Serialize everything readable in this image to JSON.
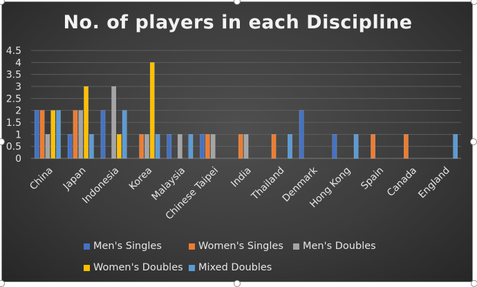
{
  "chart_data": {
    "type": "bar",
    "title": "No. of players in each Discipline",
    "categories": [
      "China",
      "Japan",
      "Indonesia",
      "Korea",
      "Malaysia",
      "Chinese Taipei",
      "India",
      "Thailand",
      "Denmark",
      "Hong Kong",
      "Spain",
      "Canada",
      "England"
    ],
    "series": [
      {
        "name": "Men's Singles",
        "color": "#4472C4",
        "values": [
          2,
          1,
          2,
          0,
          1,
          1,
          0,
          0,
          2,
          1,
          0,
          0,
          0
        ]
      },
      {
        "name": "Women's Singles",
        "color": "#ED7D31",
        "values": [
          2,
          2,
          0,
          1,
          0,
          1,
          1,
          1,
          0,
          0,
          1,
          1,
          0
        ]
      },
      {
        "name": "Men's Doubles",
        "color": "#A5A5A5",
        "values": [
          1,
          2,
          3,
          1,
          1,
          1,
          1,
          0,
          0,
          0,
          0,
          0,
          0
        ]
      },
      {
        "name": "Women's Doubles",
        "color": "#FFC000",
        "values": [
          2,
          3,
          1,
          4,
          0,
          0,
          0,
          0,
          0,
          0,
          0,
          0,
          0
        ]
      },
      {
        "name": "Mixed Doubles",
        "color": "#5B9BD5",
        "values": [
          2,
          1,
          2,
          1,
          1,
          0,
          0,
          1,
          0,
          1,
          0,
          0,
          1
        ]
      }
    ],
    "yticks": [
      "0",
      "0.5",
      "1",
      "1.5",
      "2",
      "2.5",
      "3",
      "3.5",
      "4",
      "4.5"
    ],
    "ylim": [
      0,
      4.5
    ],
    "grid": true,
    "legend": "bottom"
  }
}
